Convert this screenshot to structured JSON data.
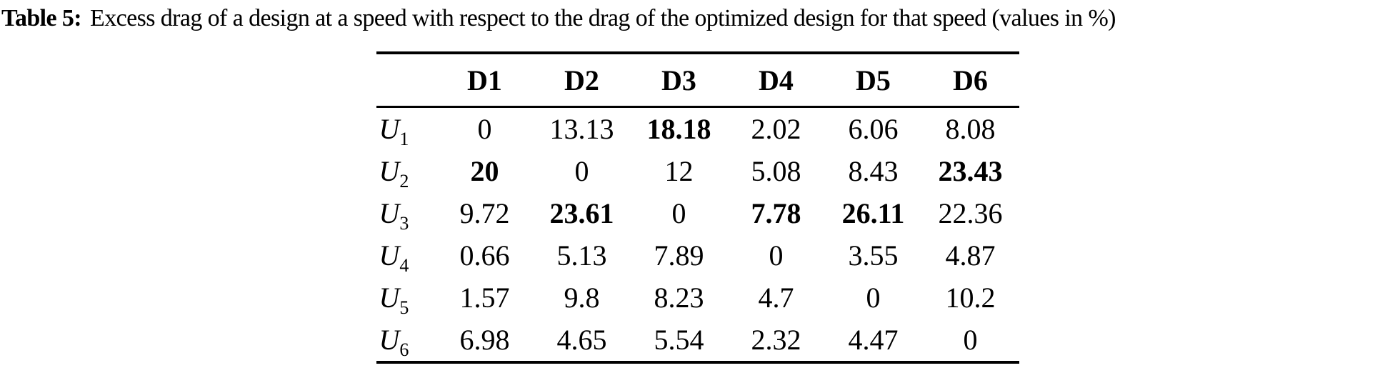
{
  "caption": {
    "label": "Table 5:",
    "text": "Excess drag of a design at a speed with respect to the drag of the optimized design for that speed (values in %)"
  },
  "table": {
    "columns": [
      "D1",
      "D2",
      "D3",
      "D4",
      "D5",
      "D6"
    ],
    "rows": [
      {
        "label_base": "U",
        "label_sub": "1",
        "cells": [
          {
            "v": "0",
            "bold": false
          },
          {
            "v": "13.13",
            "bold": false
          },
          {
            "v": "18.18",
            "bold": true
          },
          {
            "v": "2.02",
            "bold": false
          },
          {
            "v": "6.06",
            "bold": false
          },
          {
            "v": "8.08",
            "bold": false
          }
        ]
      },
      {
        "label_base": "U",
        "label_sub": "2",
        "cells": [
          {
            "v": "20",
            "bold": true
          },
          {
            "v": "0",
            "bold": false
          },
          {
            "v": "12",
            "bold": false
          },
          {
            "v": "5.08",
            "bold": false
          },
          {
            "v": "8.43",
            "bold": false
          },
          {
            "v": "23.43",
            "bold": true
          }
        ]
      },
      {
        "label_base": "U",
        "label_sub": "3",
        "cells": [
          {
            "v": "9.72",
            "bold": false
          },
          {
            "v": "23.61",
            "bold": true
          },
          {
            "v": "0",
            "bold": false
          },
          {
            "v": "7.78",
            "bold": true
          },
          {
            "v": "26.11",
            "bold": true
          },
          {
            "v": "22.36",
            "bold": false
          }
        ]
      },
      {
        "label_base": "U",
        "label_sub": "4",
        "cells": [
          {
            "v": "0.66",
            "bold": false
          },
          {
            "v": "5.13",
            "bold": false
          },
          {
            "v": "7.89",
            "bold": false
          },
          {
            "v": "0",
            "bold": false
          },
          {
            "v": "3.55",
            "bold": false
          },
          {
            "v": "4.87",
            "bold": false
          }
        ]
      },
      {
        "label_base": "U",
        "label_sub": "5",
        "cells": [
          {
            "v": "1.57",
            "bold": false
          },
          {
            "v": "9.8",
            "bold": false
          },
          {
            "v": "8.23",
            "bold": false
          },
          {
            "v": "4.7",
            "bold": false
          },
          {
            "v": "0",
            "bold": false
          },
          {
            "v": "10.2",
            "bold": false
          }
        ]
      },
      {
        "label_base": "U",
        "label_sub": "6",
        "cells": [
          {
            "v": "6.98",
            "bold": false
          },
          {
            "v": "4.65",
            "bold": false
          },
          {
            "v": "5.54",
            "bold": false
          },
          {
            "v": "2.32",
            "bold": false
          },
          {
            "v": "4.47",
            "bold": false
          },
          {
            "v": "0",
            "bold": false
          }
        ]
      }
    ]
  }
}
